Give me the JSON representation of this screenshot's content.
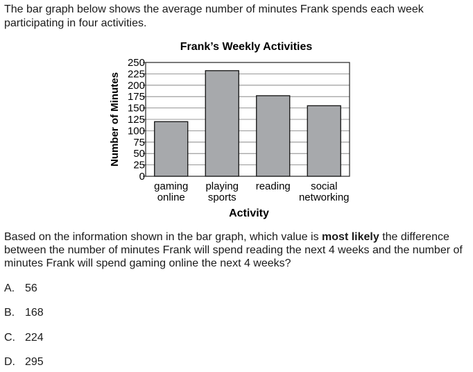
{
  "intro_text": "The bar graph below shows the average number of minutes Frank spends each week participating in four activities.",
  "chart_data": {
    "type": "bar",
    "title": "Frank’s Weekly Activities",
    "xlabel": "Activity",
    "ylabel": "Number of Minutes",
    "categories": [
      [
        "gaming",
        "online"
      ],
      [
        "playing",
        "sports"
      ],
      [
        "reading"
      ],
      [
        "social",
        "networking"
      ]
    ],
    "values": [
      120,
      232,
      177,
      155
    ],
    "ylim": [
      0,
      250
    ],
    "yticks": [
      0,
      25,
      50,
      75,
      100,
      125,
      150,
      175,
      200,
      225,
      250
    ],
    "grid": true,
    "bar_color": "#a7a9ac"
  },
  "question": {
    "before": "Based on the information shown in the bar graph, which value is ",
    "emphasis": "most likely",
    "after": " the difference between the number of minutes Frank will spend reading the next 4 weeks and the number of minutes Frank will spend gaming online the next 4 weeks?"
  },
  "choices": [
    {
      "letter": "A.",
      "value": "56"
    },
    {
      "letter": "B.",
      "value": "168"
    },
    {
      "letter": "C.",
      "value": "224"
    },
    {
      "letter": "D.",
      "value": "295"
    }
  ]
}
